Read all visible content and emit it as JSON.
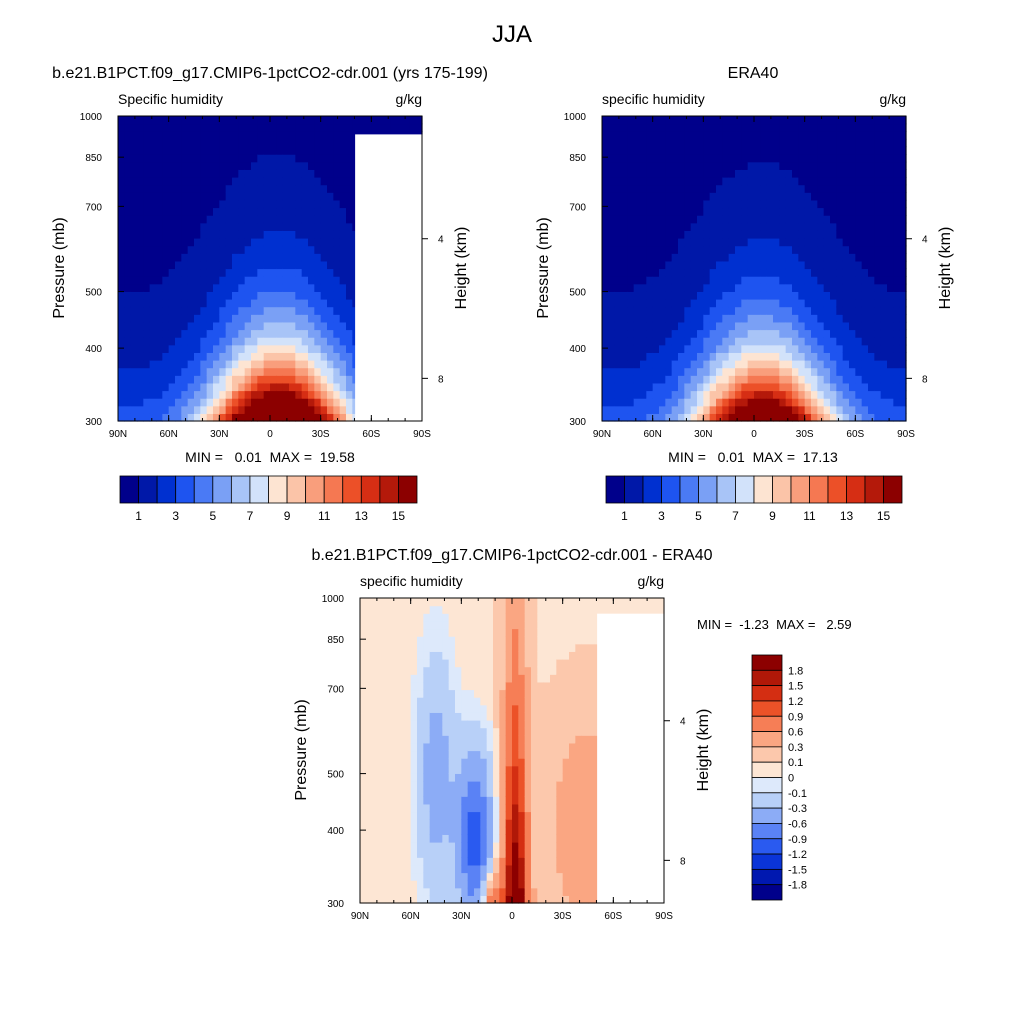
{
  "figure_title": "JJA",
  "chart_data": [
    {
      "type": "heatmap",
      "panel_title": "b.e21.B1PCT.f09_g17.CMIP6-1pctCO2-cdr.001 (yrs 175-199)",
      "left_label": "Specific humidity",
      "right_label": "g/kg",
      "ylabel": "Pressure (mb)",
      "ylabel_right": "Height (km)",
      "x_ticks": [
        "90N",
        "60N",
        "30N",
        "0",
        "30S",
        "60S",
        "90S"
      ],
      "y_ticks": [
        "300",
        "400",
        "500",
        "700",
        "850",
        "1000"
      ],
      "y_ticks_right": [
        "8",
        "4"
      ],
      "ylim": [
        1000,
        300
      ],
      "stats_text": "MIN =   0.01  MAX =  19.58",
      "min": 0.01,
      "max": 19.58,
      "peak_lat": -5,
      "peak_value": 19.58,
      "colorbar": {
        "orientation": "horizontal",
        "levels": [
          0,
          1,
          2,
          3,
          4,
          5,
          6,
          7,
          8,
          9,
          10,
          11,
          12,
          13,
          14,
          15
        ],
        "labels": [
          "1",
          "3",
          "5",
          "7",
          "9",
          "11",
          "13",
          "15"
        ],
        "colors": [
          "#00008b",
          "#0018a8",
          "#0030d0",
          "#1e54f0",
          "#4a7af5",
          "#7aa0f5",
          "#a8c4f7",
          "#d2e2fa",
          "#fde4d2",
          "#fbc4a8",
          "#f99e7c",
          "#f57852",
          "#ec5028",
          "#d62e14",
          "#b4190a",
          "#8c0000"
        ]
      }
    },
    {
      "type": "heatmap",
      "panel_title": "ERA40",
      "left_label": "specific humidity",
      "right_label": "g/kg",
      "ylabel": "Pressure (mb)",
      "ylabel_right": "Height (km)",
      "x_ticks": [
        "90N",
        "60N",
        "30N",
        "0",
        "30S",
        "60S",
        "90S"
      ],
      "y_ticks": [
        "300",
        "400",
        "500",
        "700",
        "850",
        "1000"
      ],
      "y_ticks_right": [
        "8",
        "4"
      ],
      "ylim": [
        1000,
        300
      ],
      "stats_text": "MIN =   0.01  MAX =  17.13",
      "min": 0.01,
      "max": 17.13,
      "peak_lat": -5,
      "peak_value": 17.13,
      "colorbar": {
        "orientation": "horizontal",
        "levels": [
          0,
          1,
          2,
          3,
          4,
          5,
          6,
          7,
          8,
          9,
          10,
          11,
          12,
          13,
          14,
          15
        ],
        "labels": [
          "1",
          "3",
          "5",
          "7",
          "9",
          "11",
          "13",
          "15"
        ],
        "colors": [
          "#00008b",
          "#0018a8",
          "#0030d0",
          "#1e54f0",
          "#4a7af5",
          "#7aa0f5",
          "#a8c4f7",
          "#d2e2fa",
          "#fde4d2",
          "#fbc4a8",
          "#f99e7c",
          "#f57852",
          "#ec5028",
          "#d62e14",
          "#b4190a",
          "#8c0000"
        ]
      }
    },
    {
      "type": "heatmap",
      "panel_title": "b.e21.B1PCT.f09_g17.CMIP6-1pctCO2-cdr.001 - ERA40",
      "left_label": "specific humidity",
      "right_label": "g/kg",
      "ylabel": "Pressure (mb)",
      "ylabel_right": "Height (km)",
      "x_ticks": [
        "90N",
        "60N",
        "30N",
        "0",
        "30S",
        "60S",
        "90S"
      ],
      "y_ticks": [
        "300",
        "400",
        "500",
        "700",
        "850",
        "1000"
      ],
      "y_ticks_right": [
        "8",
        "4"
      ],
      "ylim": [
        1000,
        300
      ],
      "stats_text": "MIN =  -1.23  MAX =   2.59",
      "min": -1.23,
      "max": 2.59,
      "colorbar": {
        "orientation": "vertical",
        "levels": [
          -1.8,
          -1.5,
          -1.2,
          -0.9,
          -0.6,
          -0.3,
          -0.1,
          0,
          0.1,
          0.3,
          0.6,
          0.9,
          1.2,
          1.5,
          1.8
        ],
        "labels": [
          "1.8",
          "1.5",
          "1.2",
          "0.9",
          "0.6",
          "0.3",
          "0.1",
          "0",
          "-0.1",
          "-0.3",
          "-0.6",
          "-0.9",
          "-1.2",
          "-1.5",
          "-1.8"
        ],
        "colors": [
          "#00008b",
          "#0018b0",
          "#0a34d8",
          "#2a5af0",
          "#5a82f5",
          "#8cacf6",
          "#b8d0f8",
          "#dde9fb",
          "#fde6d4",
          "#fcc8ac",
          "#faa682",
          "#f67e56",
          "#ec5228",
          "#d42e12",
          "#b01808",
          "#8c0000"
        ]
      }
    }
  ]
}
